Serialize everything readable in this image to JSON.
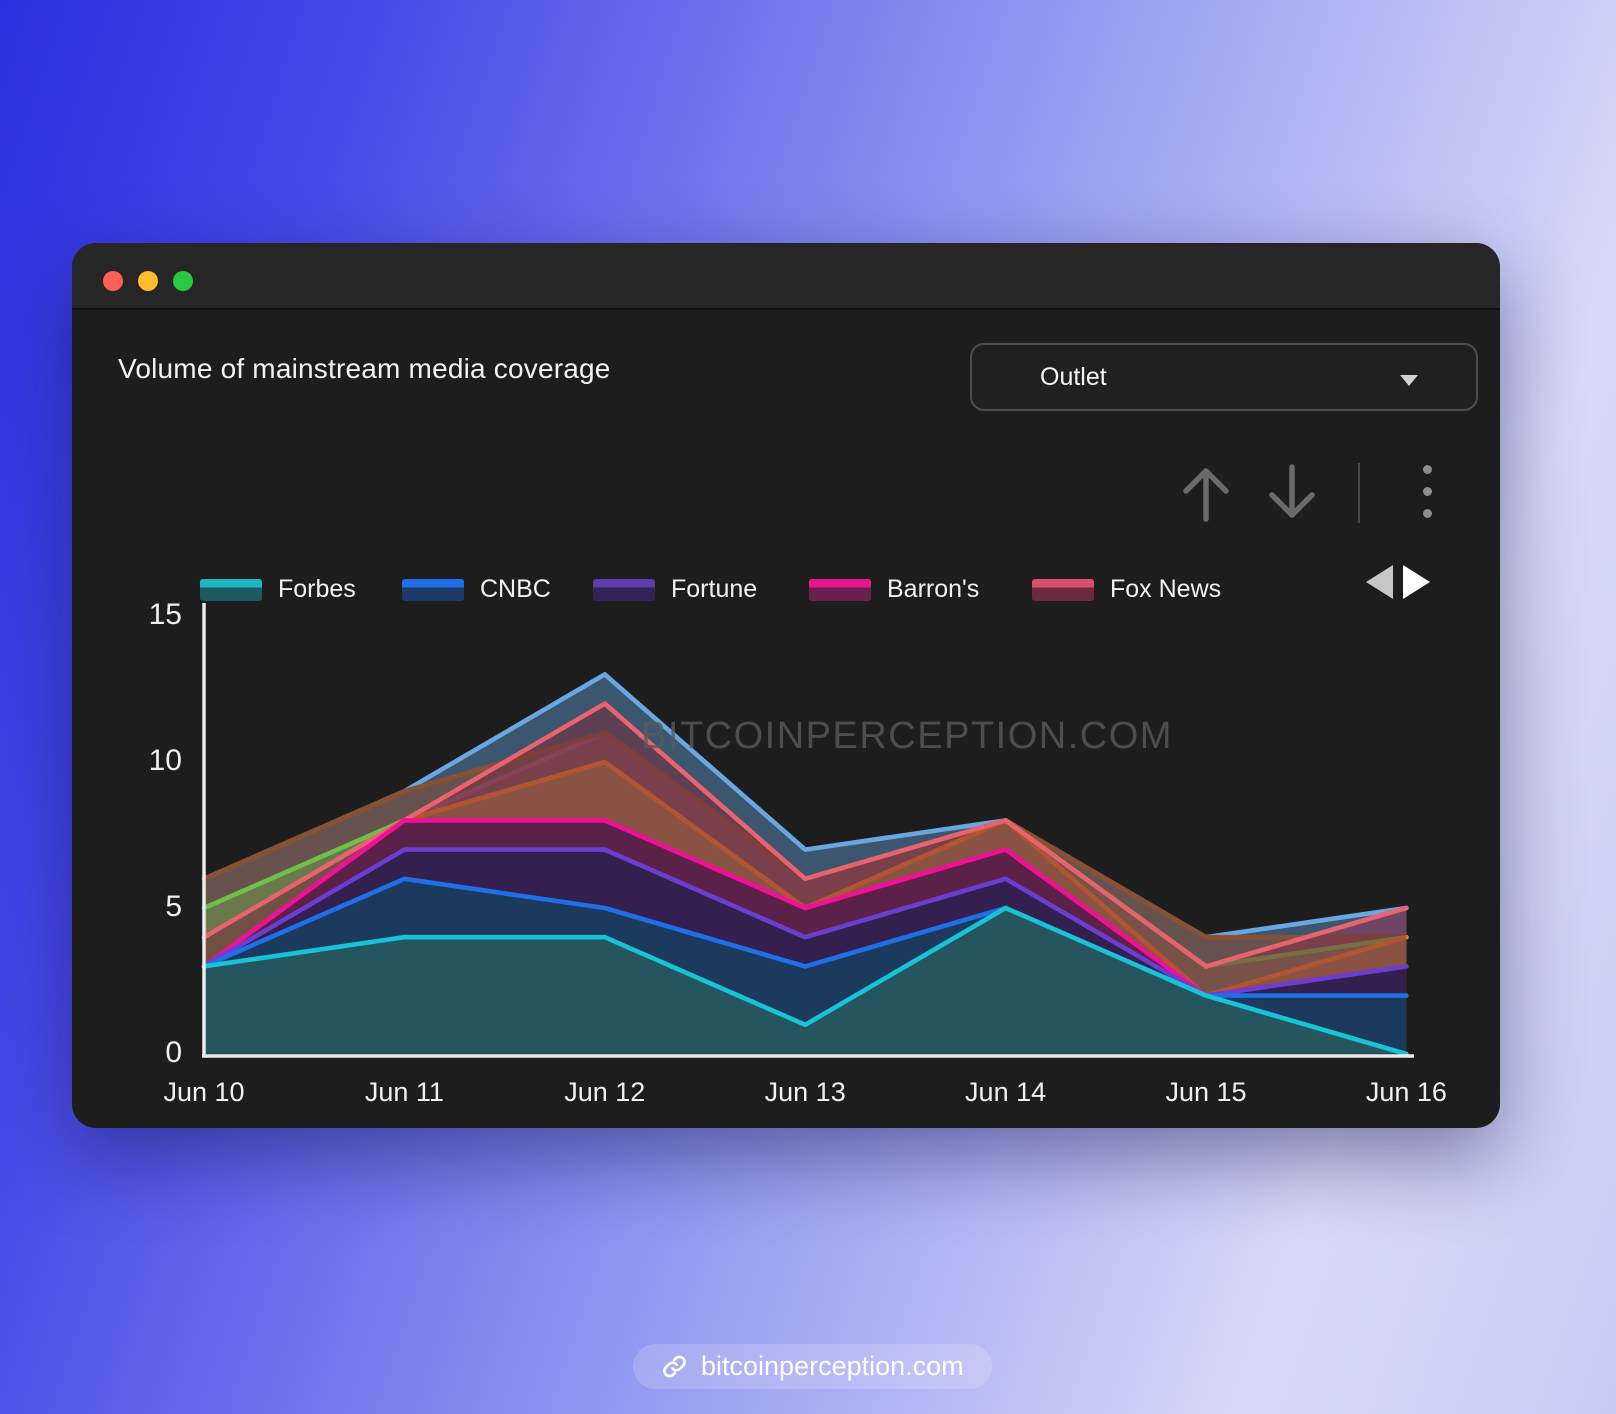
{
  "window": {
    "title": "Volume of mainstream media coverage",
    "dropdown": {
      "value": "Outlet"
    }
  },
  "toolbar": {
    "icons": [
      "move-up-icon",
      "move-down-icon",
      "kebab-menu-icon"
    ]
  },
  "legend": {
    "items": [
      {
        "label": "Forbes",
        "line": "#1fb6c4",
        "fill": "#1d5a61"
      },
      {
        "label": "CNBC",
        "line": "#1f6fe8",
        "fill": "#1d3a66"
      },
      {
        "label": "Fortune",
        "line": "#5c3dae",
        "fill": "#352058"
      },
      {
        "label": "Barron's",
        "line": "#e8168e",
        "fill": "#6b1f50"
      },
      {
        "label": "Fox News",
        "line": "#d84f72",
        "fill": "#6b2a3f"
      }
    ]
  },
  "chart_data": {
    "type": "area",
    "title": "Volume of mainstream media coverage",
    "categories": [
      "Jun 10",
      "Jun 11",
      "Jun 12",
      "Jun 13",
      "Jun 14",
      "Jun 15",
      "Jun 16"
    ],
    "yticks": [
      15,
      10,
      5,
      0
    ],
    "ylim": [
      0,
      15
    ],
    "grid": false,
    "legend_position": "top",
    "series": [
      {
        "label": "",
        "color": "#6aa7e0",
        "fill": "#6aa7e0",
        "fill_opacity": 0.42,
        "values": [
          6,
          9,
          13,
          7,
          8,
          4,
          5
        ]
      },
      {
        "label": "",
        "color": "#a06cc8",
        "fill": "#a06cc8",
        "fill_opacity": 0.38,
        "values": [
          3,
          8,
          11,
          6,
          8,
          3,
          5
        ]
      },
      {
        "label": "",
        "color": "#8a5032",
        "fill": "#8a5032",
        "fill_opacity": 0.55,
        "values": [
          6,
          9,
          11,
          6,
          8,
          4,
          4
        ]
      },
      {
        "label": "",
        "color": "#6fbf49",
        "fill": "#6fbf49",
        "fill_opacity": 0.35,
        "values": [
          5,
          8,
          10,
          5,
          8,
          3,
          4
        ]
      },
      {
        "label": "",
        "color": "#f58220",
        "fill": "#f58220",
        "fill_opacity": 0.3,
        "values": [
          3,
          8,
          10,
          5,
          8,
          2,
          4
        ]
      },
      {
        "label": "Fox News",
        "color": "#e8636e",
        "fill": "#7a2f3f",
        "fill_opacity": 0.55,
        "values": [
          4,
          8,
          12,
          6,
          8,
          3,
          5
        ]
      },
      {
        "label": "Barron's",
        "color": "#f00f96",
        "fill": "#5a1f4a",
        "fill_opacity": 0.95,
        "values": [
          3,
          8,
          8,
          5,
          7,
          2,
          3
        ]
      },
      {
        "label": "Fortune",
        "color": "#6a3fd0",
        "fill": "#32204e",
        "fill_opacity": 0.97,
        "values": [
          3,
          7,
          7,
          4,
          6,
          2,
          3
        ]
      },
      {
        "label": "CNBC",
        "color": "#1f6fe8",
        "fill": "#1c3a5e",
        "fill_opacity": 1,
        "values": [
          3,
          6,
          5,
          3,
          5,
          2,
          2
        ]
      },
      {
        "label": "Forbes",
        "color": "#17c3d6",
        "fill": "#25565f",
        "fill_opacity": 1,
        "values": [
          3,
          4,
          4,
          1,
          5,
          2,
          0
        ]
      }
    ]
  },
  "watermark": "BITCOINPERCEPTION.COM",
  "footer": {
    "link_text": "bitcoinperception.com"
  }
}
